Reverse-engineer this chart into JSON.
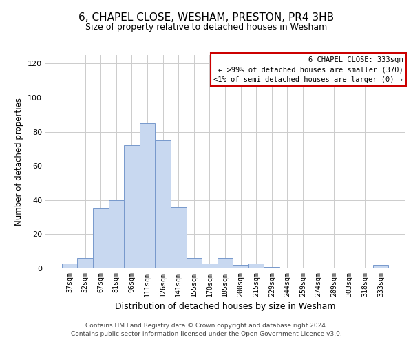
{
  "title": "6, CHAPEL CLOSE, WESHAM, PRESTON, PR4 3HB",
  "subtitle": "Size of property relative to detached houses in Wesham",
  "xlabel": "Distribution of detached houses by size in Wesham",
  "ylabel": "Number of detached properties",
  "bar_labels": [
    "37sqm",
    "52sqm",
    "67sqm",
    "81sqm",
    "96sqm",
    "111sqm",
    "126sqm",
    "141sqm",
    "155sqm",
    "170sqm",
    "185sqm",
    "200sqm",
    "215sqm",
    "229sqm",
    "244sqm",
    "259sqm",
    "274sqm",
    "289sqm",
    "303sqm",
    "318sqm",
    "333sqm"
  ],
  "bar_values": [
    3,
    6,
    35,
    40,
    72,
    85,
    75,
    36,
    6,
    3,
    6,
    2,
    3,
    1,
    0,
    0,
    0,
    0,
    0,
    0,
    2
  ],
  "bar_color": "#c8d8f0",
  "bar_edge_color": "#7799cc",
  "ylim": [
    0,
    125
  ],
  "yticks": [
    0,
    20,
    40,
    60,
    80,
    100,
    120
  ],
  "legend_title": "6 CHAPEL CLOSE: 333sqm",
  "legend_line1": "← >99% of detached houses are smaller (370)",
  "legend_line2": "<1% of semi-detached houses are larger (0) →",
  "legend_box_color": "#ffffff",
  "legend_box_edge_color": "#cc0000",
  "footer_line1": "Contains HM Land Registry data © Crown copyright and database right 2024.",
  "footer_line2": "Contains public sector information licensed under the Open Government Licence v3.0.",
  "background_color": "#ffffff",
  "grid_color": "#cccccc"
}
